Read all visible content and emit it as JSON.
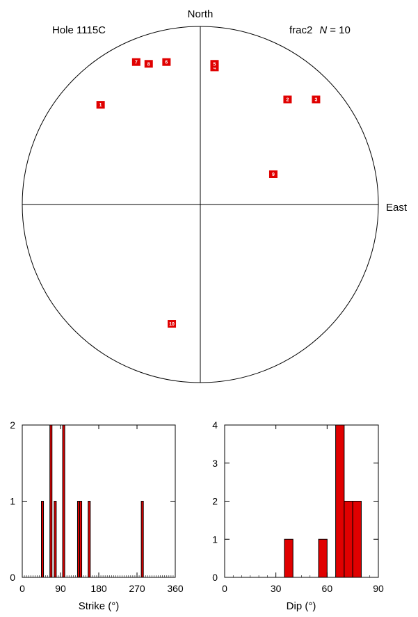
{
  "stereonet": {
    "north_label": "North",
    "east_label": "East",
    "hole_label": "Hole 1115C",
    "set_label": "frac2",
    "n_label": "N",
    "n_value": "= 10",
    "marker_color": "#e00000"
  },
  "chart_data": [
    {
      "type": "scatter",
      "projection": "stereonet",
      "title": "",
      "points": [
        {
          "id": "1",
          "x": -0.56,
          "y": 0.56
        },
        {
          "id": "2",
          "x": 0.49,
          "y": 0.59
        },
        {
          "id": "3",
          "x": 0.65,
          "y": 0.59
        },
        {
          "id": "4",
          "x": 0.08,
          "y": 0.77
        },
        {
          "id": "5",
          "x": 0.08,
          "y": 0.79
        },
        {
          "id": "6",
          "x": -0.19,
          "y": 0.8
        },
        {
          "id": "7",
          "x": -0.36,
          "y": 0.8
        },
        {
          "id": "8",
          "x": -0.29,
          "y": 0.79
        },
        {
          "id": "9",
          "x": 0.41,
          "y": 0.17
        },
        {
          "id": "10",
          "x": -0.16,
          "y": -0.67
        }
      ]
    },
    {
      "type": "bar",
      "xlabel": "Strike (°)",
      "ylabel": "",
      "xlim": [
        0,
        360
      ],
      "ylim": [
        0,
        2
      ],
      "bin_width": 5,
      "x_ticks": [
        "0",
        "90",
        "180",
        "270",
        "360"
      ],
      "y_ticks": [
        "0",
        "1",
        "2"
      ],
      "bins": [
        {
          "start": 45,
          "value": 1
        },
        {
          "start": 65,
          "value": 2
        },
        {
          "start": 75,
          "value": 1
        },
        {
          "start": 95,
          "value": 2
        },
        {
          "start": 130,
          "value": 1
        },
        {
          "start": 135,
          "value": 1
        },
        {
          "start": 155,
          "value": 1
        },
        {
          "start": 280,
          "value": 1
        }
      ]
    },
    {
      "type": "bar",
      "xlabel": "Dip (°)",
      "ylabel": "",
      "xlim": [
        0,
        90
      ],
      "ylim": [
        0,
        4
      ],
      "bin_width": 5,
      "x_ticks": [
        "0",
        "30",
        "60",
        "90"
      ],
      "y_ticks": [
        "0",
        "1",
        "2",
        "3",
        "4"
      ],
      "bins": [
        {
          "start": 35,
          "value": 1
        },
        {
          "start": 55,
          "value": 1
        },
        {
          "start": 65,
          "value": 4
        },
        {
          "start": 70,
          "value": 2
        },
        {
          "start": 75,
          "value": 2
        }
      ]
    }
  ]
}
